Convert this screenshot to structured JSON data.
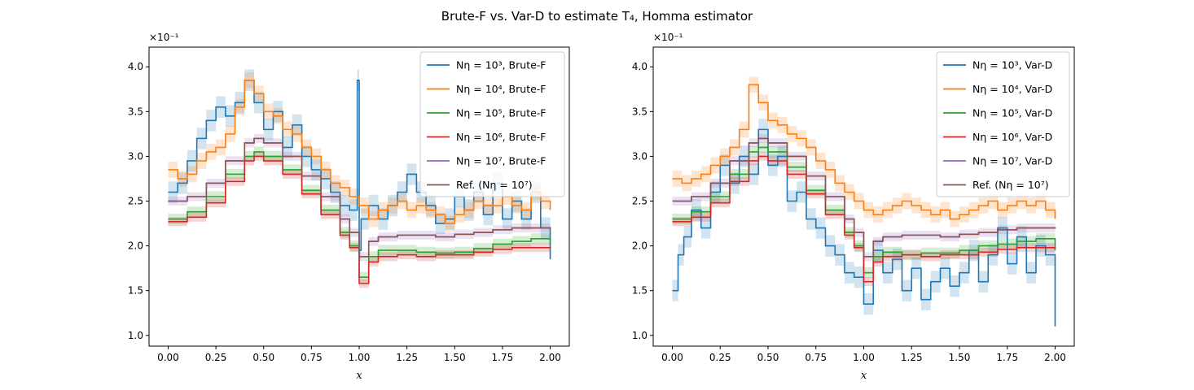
{
  "title": "Brute-F vs. Var-D to estimate T₄, Homma estimator",
  "colors": {
    "blue": "#1f77b4",
    "orange": "#ff7f0e",
    "green": "#2ca02c",
    "red": "#d62728",
    "purple": "#9467bd",
    "brown": "#8c564b"
  },
  "chart_data": [
    {
      "type": "line",
      "step": true,
      "xlabel": "x",
      "ylabel": "",
      "multiplier": "×10⁻¹",
      "xlim": [
        -0.1,
        2.1
      ],
      "ylim": [
        0.88,
        4.22
      ],
      "xticks": [
        "0.00",
        "0.25",
        "0.50",
        "0.75",
        "1.00",
        "1.25",
        "1.50",
        "1.75",
        "2.00"
      ],
      "yticks": [
        "1.0",
        "1.5",
        "2.0",
        "2.5",
        "3.0",
        "3.5",
        "4.0"
      ],
      "legend_position": "top-right",
      "series": [
        {
          "name": "Nη = 10³, Brute-F",
          "legend": "Nη = 10³, Brute-F",
          "color": "#1f77b4",
          "x": [
            0.0,
            0.05,
            0.1,
            0.15,
            0.2,
            0.25,
            0.3,
            0.35,
            0.4,
            0.45,
            0.5,
            0.55,
            0.6,
            0.65,
            0.7,
            0.75,
            0.8,
            0.85,
            0.9,
            0.95,
            0.99,
            1.0,
            1.01,
            1.05,
            1.1,
            1.15,
            1.2,
            1.25,
            1.3,
            1.35,
            1.4,
            1.45,
            1.5,
            1.55,
            1.6,
            1.65,
            1.7,
            1.75,
            1.8,
            1.85,
            1.9,
            1.95,
            2.0
          ],
          "y": [
            2.6,
            2.7,
            2.95,
            3.2,
            3.4,
            3.55,
            3.45,
            3.6,
            3.85,
            3.6,
            3.3,
            3.5,
            3.1,
            3.35,
            3.0,
            2.85,
            2.75,
            2.6,
            2.45,
            2.4,
            3.85,
            1.95,
            2.3,
            2.45,
            2.3,
            2.45,
            2.6,
            2.8,
            2.6,
            2.45,
            2.25,
            2.3,
            2.55,
            2.4,
            2.6,
            2.35,
            2.7,
            2.3,
            2.5,
            2.3,
            2.6,
            2.2,
            1.85
          ]
        },
        {
          "name": "Nη = 10⁴, Brute-F",
          "legend": "Nη = 10⁴, Brute-F",
          "color": "#ff7f0e",
          "x": [
            0.0,
            0.05,
            0.1,
            0.15,
            0.2,
            0.25,
            0.3,
            0.35,
            0.4,
            0.45,
            0.5,
            0.55,
            0.6,
            0.65,
            0.7,
            0.75,
            0.8,
            0.85,
            0.9,
            0.95,
            1.0,
            1.05,
            1.1,
            1.15,
            1.2,
            1.25,
            1.3,
            1.35,
            1.4,
            1.45,
            1.5,
            1.55,
            1.6,
            1.65,
            1.7,
            1.75,
            1.8,
            1.85,
            1.9,
            1.95,
            2.0
          ],
          "y": [
            2.85,
            2.75,
            2.8,
            2.95,
            3.05,
            3.1,
            3.25,
            3.55,
            3.85,
            3.7,
            3.5,
            3.45,
            3.3,
            3.25,
            3.1,
            3.0,
            2.85,
            2.7,
            2.65,
            2.55,
            2.45,
            2.3,
            2.4,
            2.45,
            2.5,
            2.4,
            2.45,
            2.4,
            2.35,
            2.25,
            2.35,
            2.4,
            2.5,
            2.45,
            2.45,
            2.55,
            2.45,
            2.4,
            2.6,
            2.5,
            2.4
          ]
        },
        {
          "name": "Nη = 10⁵, Brute-F",
          "legend": "Nη = 10⁵, Brute-F",
          "color": "#2ca02c",
          "x": [
            0.0,
            0.1,
            0.2,
            0.3,
            0.4,
            0.45,
            0.5,
            0.6,
            0.7,
            0.8,
            0.9,
            0.95,
            1.0,
            1.05,
            1.1,
            1.2,
            1.3,
            1.4,
            1.5,
            1.6,
            1.7,
            1.8,
            1.9,
            2.0
          ],
          "y": [
            2.3,
            2.38,
            2.55,
            2.8,
            3.0,
            3.05,
            3.0,
            2.85,
            2.62,
            2.4,
            2.15,
            2.0,
            1.65,
            1.88,
            1.95,
            1.95,
            1.93,
            1.92,
            1.93,
            1.97,
            2.02,
            2.05,
            2.08,
            2.02
          ]
        },
        {
          "name": "Nη = 10⁶, Brute-F",
          "legend": "Nη = 10⁶, Brute-F",
          "color": "#d62728",
          "x": [
            0.0,
            0.1,
            0.2,
            0.3,
            0.4,
            0.45,
            0.5,
            0.6,
            0.7,
            0.8,
            0.9,
            0.95,
            1.0,
            1.05,
            1.1,
            1.2,
            1.3,
            1.4,
            1.5,
            1.6,
            1.7,
            1.8,
            1.9,
            2.0
          ],
          "y": [
            2.27,
            2.32,
            2.48,
            2.72,
            2.95,
            3.0,
            2.95,
            2.8,
            2.58,
            2.35,
            2.12,
            1.98,
            1.58,
            1.82,
            1.88,
            1.9,
            1.88,
            1.9,
            1.9,
            1.93,
            1.96,
            1.98,
            1.98,
            1.97
          ]
        },
        {
          "name": "Nη = 10⁷, Brute-F",
          "legend": "Nη = 10⁷, Brute-F",
          "color": "#9467bd",
          "x": [
            0.0,
            0.1,
            0.2,
            0.3,
            0.4,
            0.45,
            0.5,
            0.6,
            0.7,
            0.8,
            0.9,
            0.95,
            1.0,
            1.05,
            1.1,
            1.2,
            1.3,
            1.4,
            1.5,
            1.6,
            1.7,
            1.8,
            1.9,
            2.0
          ],
          "y": [
            2.5,
            2.55,
            2.7,
            2.95,
            3.15,
            3.2,
            3.15,
            3.0,
            2.78,
            2.55,
            2.3,
            2.15,
            1.88,
            2.05,
            2.1,
            2.12,
            2.12,
            2.1,
            2.13,
            2.15,
            2.18,
            2.2,
            2.2,
            2.21
          ]
        },
        {
          "name": "Ref. (Nη = 10⁷)",
          "legend": "Ref. (Nη = 10⁷)",
          "color": "#8c564b",
          "x": [
            0.0,
            0.1,
            0.2,
            0.3,
            0.4,
            0.45,
            0.5,
            0.6,
            0.7,
            0.8,
            0.9,
            0.95,
            1.0,
            1.05,
            1.1,
            1.2,
            1.3,
            1.4,
            1.5,
            1.6,
            1.7,
            1.8,
            1.9,
            2.0
          ],
          "y": [
            2.5,
            2.55,
            2.7,
            2.95,
            3.15,
            3.2,
            3.15,
            3.0,
            2.78,
            2.55,
            2.3,
            2.15,
            1.88,
            2.05,
            2.1,
            2.12,
            2.12,
            2.1,
            2.13,
            2.15,
            2.18,
            2.2,
            2.2,
            2.21
          ]
        }
      ]
    },
    {
      "type": "line",
      "step": true,
      "xlabel": "x",
      "ylabel": "",
      "multiplier": "×10⁻¹",
      "xlim": [
        -0.1,
        2.1
      ],
      "ylim": [
        0.88,
        4.22
      ],
      "xticks": [
        "0.00",
        "0.25",
        "0.50",
        "0.75",
        "1.00",
        "1.25",
        "1.50",
        "1.75",
        "2.00"
      ],
      "yticks": [
        "1.0",
        "1.5",
        "2.0",
        "2.5",
        "3.0",
        "3.5",
        "4.0"
      ],
      "legend_position": "top-right",
      "series": [
        {
          "name": "Nη = 10³, Var-D",
          "legend": "Nη = 10³, Var-D",
          "color": "#1f77b4",
          "x": [
            0.0,
            0.03,
            0.06,
            0.1,
            0.15,
            0.2,
            0.25,
            0.3,
            0.35,
            0.4,
            0.45,
            0.5,
            0.55,
            0.6,
            0.65,
            0.7,
            0.75,
            0.8,
            0.85,
            0.9,
            0.95,
            1.0,
            1.05,
            1.1,
            1.15,
            1.2,
            1.25,
            1.3,
            1.35,
            1.4,
            1.45,
            1.5,
            1.55,
            1.6,
            1.65,
            1.7,
            1.75,
            1.8,
            1.85,
            1.9,
            1.95,
            2.0
          ],
          "y": [
            1.5,
            1.9,
            2.1,
            2.4,
            2.2,
            2.6,
            2.9,
            2.7,
            3.0,
            2.8,
            3.3,
            2.9,
            3.0,
            2.5,
            2.6,
            2.3,
            2.2,
            2.0,
            1.9,
            1.7,
            1.65,
            1.35,
            1.95,
            1.7,
            1.85,
            1.5,
            1.75,
            1.4,
            1.6,
            1.75,
            1.55,
            1.7,
            1.95,
            1.6,
            1.9,
            2.2,
            1.8,
            2.1,
            1.7,
            2.0,
            1.9,
            1.1
          ]
        },
        {
          "name": "Nη = 10⁴, Var-D",
          "legend": "Nη = 10⁴, Var-D",
          "color": "#ff7f0e",
          "x": [
            0.0,
            0.05,
            0.1,
            0.15,
            0.2,
            0.25,
            0.3,
            0.35,
            0.4,
            0.45,
            0.5,
            0.55,
            0.6,
            0.65,
            0.7,
            0.75,
            0.8,
            0.85,
            0.9,
            0.95,
            1.0,
            1.05,
            1.1,
            1.15,
            1.2,
            1.25,
            1.3,
            1.35,
            1.4,
            1.45,
            1.5,
            1.55,
            1.6,
            1.65,
            1.7,
            1.75,
            1.8,
            1.85,
            1.9,
            1.95,
            2.0
          ],
          "y": [
            2.75,
            2.7,
            2.75,
            2.8,
            2.9,
            3.0,
            3.1,
            3.3,
            3.8,
            3.6,
            3.4,
            3.35,
            3.25,
            3.2,
            3.1,
            2.95,
            2.85,
            2.7,
            2.6,
            2.5,
            2.4,
            2.35,
            2.4,
            2.45,
            2.5,
            2.45,
            2.4,
            2.35,
            2.4,
            2.3,
            2.35,
            2.4,
            2.45,
            2.5,
            2.4,
            2.45,
            2.5,
            2.45,
            2.5,
            2.4,
            2.3
          ]
        },
        {
          "name": "Nη = 10⁵, Var-D",
          "legend": "Nη = 10⁵, Var-D",
          "color": "#2ca02c",
          "x": [
            0.0,
            0.1,
            0.2,
            0.3,
            0.4,
            0.45,
            0.5,
            0.6,
            0.7,
            0.8,
            0.9,
            0.95,
            1.0,
            1.05,
            1.1,
            1.2,
            1.3,
            1.4,
            1.5,
            1.6,
            1.7,
            1.8,
            1.9,
            2.0
          ],
          "y": [
            2.3,
            2.38,
            2.55,
            2.8,
            3.05,
            3.1,
            3.05,
            2.88,
            2.62,
            2.4,
            2.15,
            2.0,
            1.7,
            1.88,
            1.93,
            1.9,
            1.92,
            1.92,
            1.95,
            2.0,
            2.02,
            2.05,
            2.08,
            1.95
          ]
        },
        {
          "name": "Nη = 10⁶, Var-D",
          "legend": "Nη = 10⁶, Var-D",
          "color": "#d62728",
          "x": [
            0.0,
            0.1,
            0.2,
            0.3,
            0.4,
            0.45,
            0.5,
            0.6,
            0.7,
            0.8,
            0.9,
            0.95,
            1.0,
            1.05,
            1.1,
            1.2,
            1.3,
            1.4,
            1.5,
            1.6,
            1.7,
            1.8,
            1.9,
            2.0
          ],
          "y": [
            2.27,
            2.32,
            2.48,
            2.72,
            2.95,
            3.0,
            2.95,
            2.8,
            2.58,
            2.35,
            2.12,
            1.98,
            1.6,
            1.82,
            1.88,
            1.9,
            1.88,
            1.9,
            1.9,
            1.93,
            1.96,
            1.98,
            1.98,
            1.97
          ]
        },
        {
          "name": "Nη = 10⁷, Var-D",
          "legend": "Nη = 10⁷, Var-D",
          "color": "#9467bd",
          "x": [
            0.0,
            0.1,
            0.2,
            0.3,
            0.4,
            0.45,
            0.5,
            0.6,
            0.7,
            0.8,
            0.9,
            0.95,
            1.0,
            1.05,
            1.1,
            1.2,
            1.3,
            1.4,
            1.5,
            1.6,
            1.7,
            1.8,
            1.9,
            2.0
          ],
          "y": [
            2.5,
            2.55,
            2.7,
            2.95,
            3.15,
            3.2,
            3.15,
            3.0,
            2.78,
            2.55,
            2.3,
            2.15,
            1.88,
            2.05,
            2.1,
            2.12,
            2.12,
            2.1,
            2.13,
            2.15,
            2.18,
            2.2,
            2.2,
            2.21
          ]
        },
        {
          "name": "Ref. (Nη = 10⁷)",
          "legend": "Ref. (Nη = 10⁷)",
          "color": "#8c564b",
          "x": [
            0.0,
            0.1,
            0.2,
            0.3,
            0.4,
            0.45,
            0.5,
            0.6,
            0.7,
            0.8,
            0.9,
            0.95,
            1.0,
            1.05,
            1.1,
            1.2,
            1.3,
            1.4,
            1.5,
            1.6,
            1.7,
            1.8,
            1.9,
            2.0
          ],
          "y": [
            2.5,
            2.55,
            2.7,
            2.95,
            3.15,
            3.2,
            3.15,
            3.0,
            2.78,
            2.55,
            2.3,
            2.15,
            1.88,
            2.05,
            2.1,
            2.12,
            2.12,
            2.1,
            2.13,
            2.15,
            2.18,
            2.2,
            2.2,
            2.21
          ]
        }
      ]
    }
  ]
}
